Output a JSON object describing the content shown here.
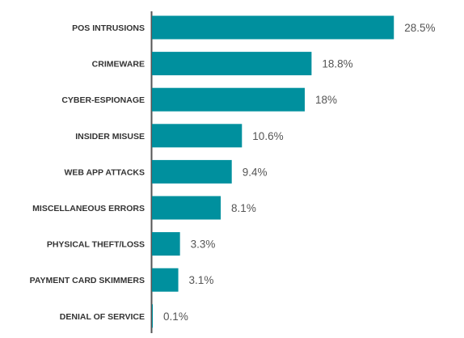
{
  "chart_data": {
    "type": "bar",
    "orientation": "horizontal",
    "categories": [
      "POS INTRUSIONS",
      "CRIMEWARE",
      "CYBER-ESPIONAGE",
      "INSIDER MISUSE",
      "WEB APP ATTACKS",
      "MISCELLANEOUS ERRORS",
      "PHYSICAL THEFT/LOSS",
      "PAYMENT CARD SKIMMERS",
      "DENIAL OF SERVICE"
    ],
    "values": [
      28.5,
      18.8,
      18,
      10.6,
      9.4,
      8.1,
      3.3,
      3.1,
      0.1
    ],
    "value_labels": [
      "28.5%",
      "18.8%",
      "18%",
      "10.6%",
      "9.4%",
      "8.1%",
      "3.3%",
      "3.1%",
      "0.1%"
    ],
    "title": "",
    "xlabel": "",
    "ylabel": "",
    "grid": false,
    "legend": "none",
    "colors": {
      "bar": "#00909e",
      "axis": "#555555",
      "category_text": "#333333",
      "value_text": "#555555"
    }
  }
}
